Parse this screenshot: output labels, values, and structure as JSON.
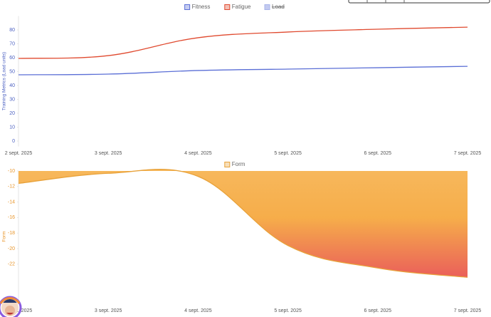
{
  "chart_data": [
    {
      "type": "line",
      "y_label": "Training Metrics (Load units)",
      "axis_color": "#4a5fc1",
      "x": [
        "2 sept. 2025",
        "3 sept. 2025",
        "4 sept. 2025",
        "5 sept. 2025",
        "6 sept. 2025",
        "7 sept. 2025"
      ],
      "series": [
        {
          "name": "Fitness",
          "color": "#5b6fd6",
          "values": [
            47.7,
            48.2,
            50.8,
            51.8,
            52.8,
            53.8
          ]
        },
        {
          "name": "Fatigue",
          "color": "#e04a2f",
          "values": [
            59.5,
            61.5,
            74.4,
            78.5,
            80.5,
            82
          ]
        },
        {
          "name": "Load",
          "color": "#a9b4ea",
          "hidden": true
        }
      ],
      "ylim": [
        -4,
        90
      ],
      "yticks": [
        0,
        10,
        20,
        30,
        40,
        50,
        60,
        70,
        80
      ],
      "grid": false
    },
    {
      "type": "area",
      "y_label": "Form",
      "axis_color": "#e8952a",
      "x": [
        "2 sept. 2025",
        "3 sept. 2025",
        "4 sept. 2025",
        "5 sept. 2025",
        "6 sept. 2025",
        "7 sept. 2025"
      ],
      "series": [
        {
          "name": "Form",
          "color": "#e8a23a",
          "values": [
            -11.6,
            -10.3,
            -10.7,
            -19.6,
            -22.5,
            -23.7
          ]
        }
      ],
      "ylim": [
        -27,
        -10
      ],
      "yticks": [
        -10,
        -12,
        -14,
        -16,
        -18,
        -20,
        -22
      ],
      "grid": false
    }
  ]
}
